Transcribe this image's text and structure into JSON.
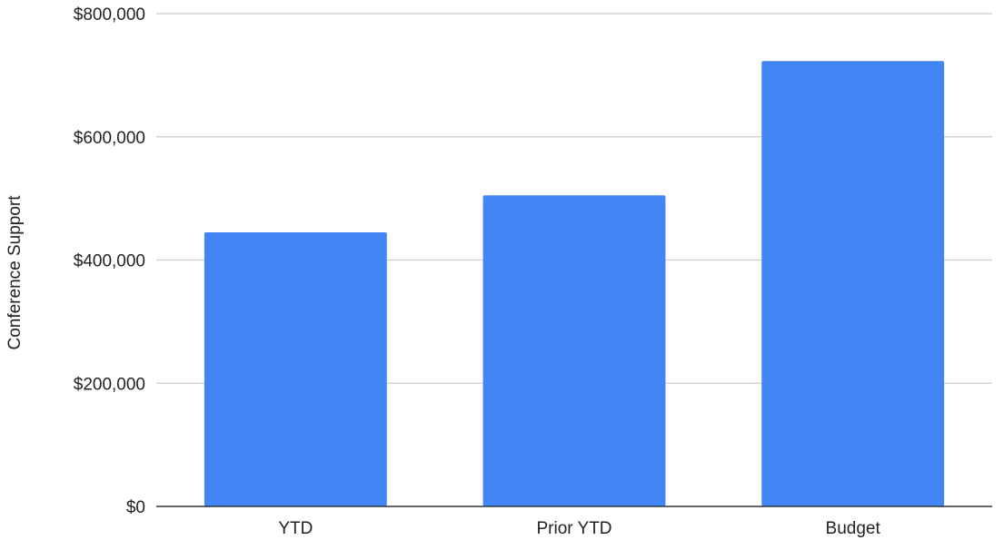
{
  "chart_data": {
    "type": "bar",
    "title": "",
    "xlabel": "",
    "ylabel": "Conference Support",
    "categories": [
      "YTD",
      "Prior YTD",
      "Budget"
    ],
    "series": [
      {
        "values": [
          445000,
          505000,
          723000
        ]
      }
    ],
    "ylim": [
      0,
      800000
    ],
    "yticks": [
      0,
      200000,
      400000,
      600000,
      800000
    ],
    "ytick_labels": [
      "$0",
      "$200,000",
      "$400,000",
      "$600,000",
      "$800,000"
    ],
    "grid": true,
    "legend": "none",
    "bar_color": "#4285f4"
  }
}
